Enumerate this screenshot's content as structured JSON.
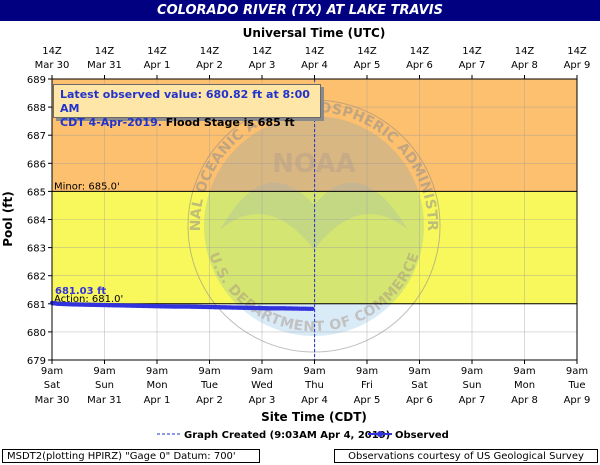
{
  "title": "COLORADO RIVER (TX) AT LAKE TRAVIS",
  "top_axis_title": "Universal Time (UTC)",
  "info": {
    "line1": "Latest observed value: 680.82 ft at 8:00 AM",
    "line2_blue": "CDT 4-Apr-2019.",
    "line2_black": " Flood Stage is 685 ft"
  },
  "footer_left": "MSDT2(plotting HPIRZ) \"Gage 0\" Datum: 700'",
  "footer_right": "Observations courtesy of US Geological Survey",
  "watermark": {
    "top_text": "NATIONAL OCEANIC AND ATMOSPHERIC ADMINISTRATION",
    "bottom_text": "U.S. DEPARTMENT OF COMMERCE",
    "logo_text": "NOAA"
  },
  "colors": {
    "flood_zone": "#fdc06f",
    "action_zone": "#f8f85c",
    "normal_zone": "#ffffff",
    "observed": "#3333dd",
    "title_bg": "#000080"
  },
  "chart_data": {
    "type": "line",
    "ylabel": "Pool (ft)",
    "xlabel": "Site Time (CDT)",
    "ylim": [
      679,
      689
    ],
    "yticks": [
      679,
      680,
      681,
      682,
      683,
      684,
      685,
      686,
      687,
      688,
      689
    ],
    "grid": true,
    "x_start": "2019-03-30 09:00 CDT",
    "x_end": "2019-04-09 09:00 CDT",
    "x_ticks_bottom": [
      {
        "time": "9am",
        "day": "Sat",
        "date": "Mar 30"
      },
      {
        "time": "9am",
        "day": "Sun",
        "date": "Mar 31"
      },
      {
        "time": "9am",
        "day": "Mon",
        "date": "Apr 1"
      },
      {
        "time": "9am",
        "day": "Tue",
        "date": "Apr 2"
      },
      {
        "time": "9am",
        "day": "Wed",
        "date": "Apr 3"
      },
      {
        "time": "9am",
        "day": "Thu",
        "date": "Apr 4"
      },
      {
        "time": "9am",
        "day": "Fri",
        "date": "Apr 5"
      },
      {
        "time": "9am",
        "day": "Sat",
        "date": "Apr 6"
      },
      {
        "time": "9am",
        "day": "Sun",
        "date": "Apr 7"
      },
      {
        "time": "9am",
        "day": "Mon",
        "date": "Apr 8"
      },
      {
        "time": "9am",
        "day": "Tue",
        "date": "Apr 9"
      }
    ],
    "x_ticks_top": [
      {
        "time": "14Z",
        "date": "Mar 30"
      },
      {
        "time": "14Z",
        "date": "Mar 31"
      },
      {
        "time": "14Z",
        "date": "Apr 1"
      },
      {
        "time": "14Z",
        "date": "Apr 2"
      },
      {
        "time": "14Z",
        "date": "Apr 3"
      },
      {
        "time": "14Z",
        "date": "Apr 4"
      },
      {
        "time": "14Z",
        "date": "Apr 5"
      },
      {
        "time": "14Z",
        "date": "Apr 6"
      },
      {
        "time": "14Z",
        "date": "Apr 7"
      },
      {
        "time": "14Z",
        "date": "Apr 8"
      },
      {
        "time": "14Z",
        "date": "Apr 9"
      }
    ],
    "thresholds": [
      {
        "name": "Minor",
        "label": "Minor: 685.0'",
        "value": 685.0
      },
      {
        "name": "Action",
        "label": "Action: 681.0'",
        "value": 681.0
      }
    ],
    "graph_created": {
      "label": "Graph Created (9:03AM Apr 4, 2019)",
      "time": "2019-04-04 09:03 CDT"
    },
    "first_value_label": "681.03 ft",
    "series": [
      {
        "name": "Observed",
        "x": [
          "2019-03-30 09:00",
          "2019-03-30 12:00",
          "2019-03-30 18:00",
          "2019-03-31 00:00",
          "2019-03-31 06:00",
          "2019-03-31 12:00",
          "2019-03-31 18:00",
          "2019-04-01 00:00",
          "2019-04-01 06:00",
          "2019-04-01 12:00",
          "2019-04-01 18:00",
          "2019-04-02 00:00",
          "2019-04-02 06:00",
          "2019-04-02 12:00",
          "2019-04-02 18:00",
          "2019-04-03 00:00",
          "2019-04-03 06:00",
          "2019-04-03 12:00",
          "2019-04-03 18:00",
          "2019-04-04 00:00",
          "2019-04-04 08:00"
        ],
        "values": [
          681.03,
          681.0,
          680.98,
          680.97,
          680.96,
          680.95,
          680.94,
          680.93,
          680.92,
          680.91,
          680.9,
          680.9,
          680.89,
          680.88,
          680.87,
          680.86,
          680.85,
          680.84,
          680.84,
          680.83,
          680.82
        ]
      }
    ]
  },
  "legend": {
    "graph_created_label": "Graph Created (9:03AM Apr 4, 2019)",
    "observed_label": "Observed"
  }
}
